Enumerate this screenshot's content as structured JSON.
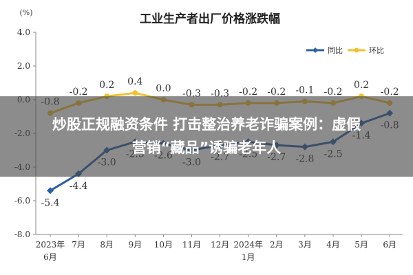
{
  "chart_data": {
    "type": "line",
    "title": "工业生产者出厂价格涨跌幅",
    "y_unit": "(%)",
    "ylim": [
      -8.0,
      4.0
    ],
    "y_ticks": [
      "4.0",
      "2.0",
      "0.0",
      "-2.0",
      "-4.0",
      "-6.0",
      "-8.0"
    ],
    "y_tick_values": [
      4,
      2,
      0,
      -2,
      -4,
      -6,
      -8
    ],
    "categories": [
      "2023年6月",
      "7月",
      "8月",
      "9月",
      "10月",
      "11月",
      "12月",
      "2024年1月",
      "2月",
      "3月",
      "4月",
      "5月",
      "6月"
    ],
    "x_tick_lines": [
      [
        "2023年",
        "6月"
      ],
      [
        "7月"
      ],
      [
        "8月"
      ],
      [
        "9月"
      ],
      [
        "10月"
      ],
      [
        "11月"
      ],
      [
        "12月"
      ],
      [
        "2024年",
        "1月"
      ],
      [
        "2月"
      ],
      [
        "3月"
      ],
      [
        "4月"
      ],
      [
        "5月"
      ],
      [
        "6月"
      ]
    ],
    "series": [
      {
        "name": "同比",
        "color": "#2b5fa3",
        "marker": "diamond",
        "values": [
          -5.4,
          -4.4,
          -3.0,
          -2.5,
          -2.6,
          -3.0,
          -2.7,
          -2.5,
          -2.7,
          -2.8,
          -2.5,
          -1.4,
          -0.8
        ],
        "labels": [
          "-5.4",
          "-4.4",
          "-3.0",
          "-2.5",
          "-2.6",
          "-3.0",
          "-2.7",
          "-2.5",
          "-2.7",
          "-2.8",
          "-2.5",
          "-1.4",
          "-0.8"
        ],
        "label_position": [
          "below",
          "below",
          "below",
          "below",
          "below",
          "below",
          "below",
          "below",
          "below",
          "below",
          "below",
          "below",
          "below"
        ]
      },
      {
        "name": "环比",
        "color": "#f2c12e",
        "marker": "circle",
        "values": [
          -0.8,
          -0.2,
          0.2,
          0.4,
          0.0,
          -0.3,
          -0.3,
          -0.2,
          -0.2,
          -0.1,
          -0.2,
          0.2,
          -0.2
        ],
        "labels": [
          "-0.8",
          "-0.2",
          "0.2",
          "0.4",
          "0.0",
          "-0.3",
          "-0.3",
          "-0.2",
          "-0.2",
          "-0.1",
          "-0.2",
          "0.2",
          "-0.2"
        ],
        "label_position": [
          "above",
          "above",
          "above",
          "above",
          "above",
          "above",
          "above",
          "above",
          "above",
          "above",
          "above",
          "above",
          "above"
        ]
      }
    ],
    "legend": {
      "placement": "top-right"
    },
    "grid": false
  },
  "overlay": {
    "line1": "炒股正规融资条件 打击整治养老诈骗案例：虚假",
    "line2": "营销“藏品”诱骗老年人"
  }
}
